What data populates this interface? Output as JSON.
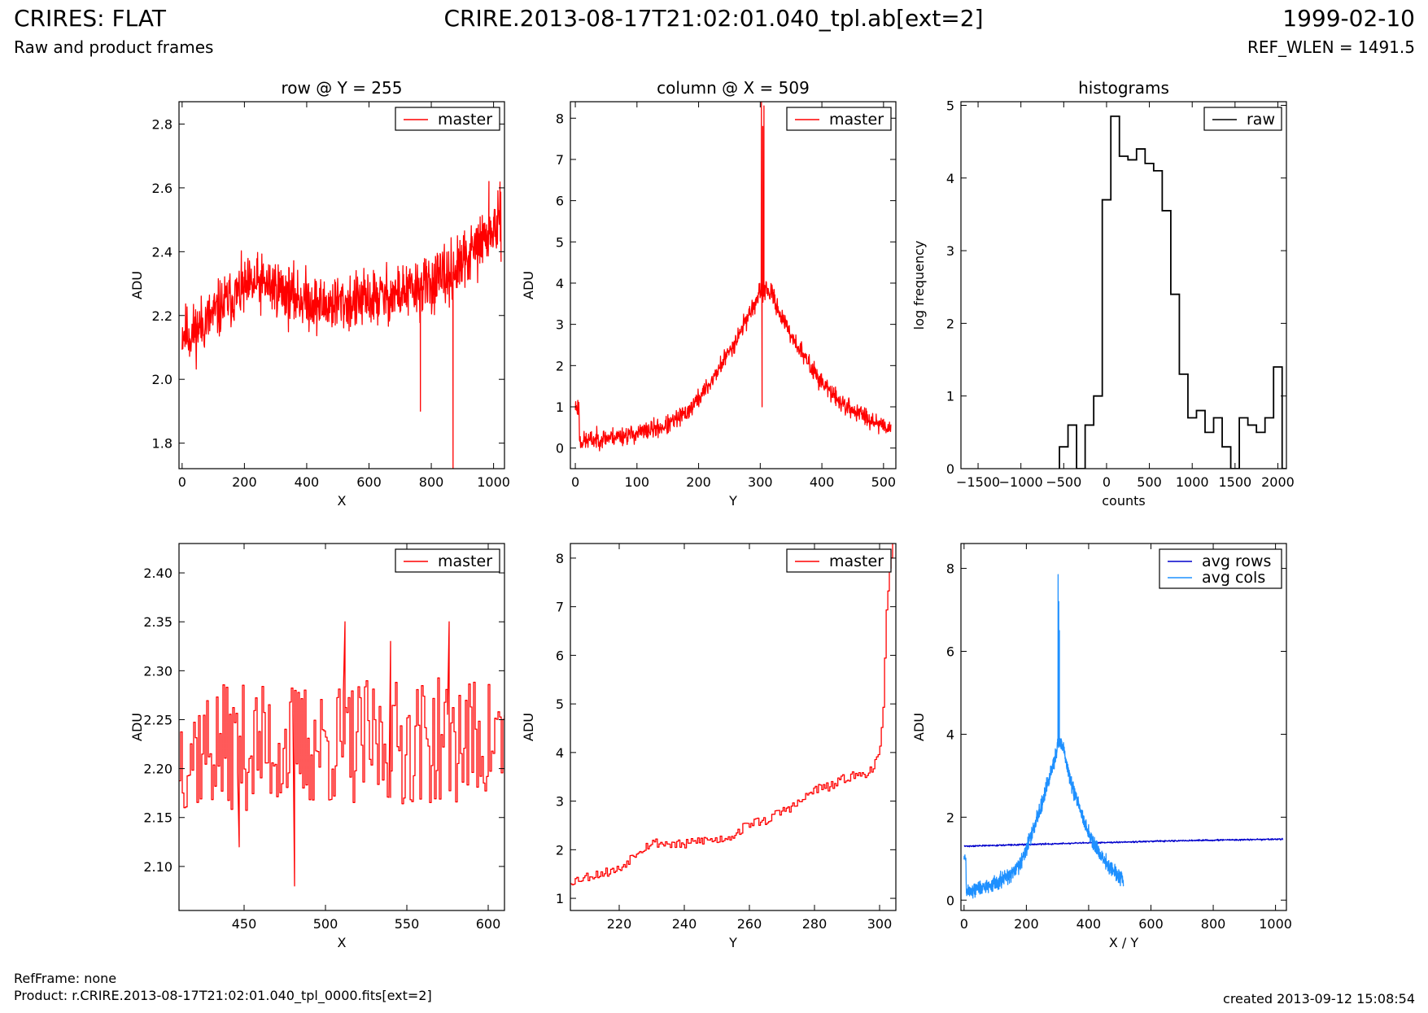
{
  "header": {
    "title": "CRIRES: FLAT",
    "subtitle": "Raw and product frames",
    "filename": "CRIRE.2013-08-17T21:02:01.040_tpl.ab[ext=2]",
    "date": "1999-02-10",
    "ref_wlen": "REF_WLEN = 1491.5"
  },
  "footer": {
    "ref_frame": "RefFrame: none",
    "product": "Product: r.CRIRE.2013-08-17T21:02:01.040_tpl_0000.fits[ext=2]",
    "created": "created 2013-09-12 15:08:54"
  },
  "colors": {
    "master": "#ff0000",
    "raw": "#000000",
    "avg_rows": "#0000cc",
    "avg_cols": "#1e90ff"
  },
  "chart_data": [
    {
      "type": "line",
      "title": "row @ Y = 255",
      "xlabel": "X",
      "ylabel": "ADU",
      "xlim": [
        -10,
        1035
      ],
      "ylim": [
        1.72,
        2.87
      ],
      "xticks": [
        0,
        200,
        400,
        600,
        800,
        1000
      ],
      "yticks": [
        1.8,
        2.0,
        2.2,
        2.4,
        2.6,
        2.8
      ],
      "tick_decimals": 1,
      "legend": "top-right",
      "series": [
        {
          "name": "master",
          "color": "#ff0000",
          "kind": "noise",
          "seed": 11,
          "amplitude": 0.1,
          "x": [
            0,
            30,
            60,
            100,
            150,
            200,
            250,
            300,
            350,
            400,
            450,
            500,
            550,
            600,
            650,
            700,
            750,
            800,
            850,
            900,
            950,
            1000,
            1024
          ],
          "y": [
            2.15,
            2.14,
            2.17,
            2.2,
            2.25,
            2.28,
            2.3,
            2.29,
            2.26,
            2.25,
            2.23,
            2.24,
            2.24,
            2.25,
            2.26,
            2.27,
            2.28,
            2.3,
            2.32,
            2.36,
            2.42,
            2.47,
            2.49
          ],
          "spikes": [
            [
              870,
              1.72
            ],
            [
              765,
              1.9
            ],
            [
              985,
              2.62
            ]
          ]
        }
      ]
    },
    {
      "type": "line",
      "title": "column @ X = 509",
      "xlabel": "Y",
      "ylabel": "ADU",
      "xlim": [
        -8,
        520
      ],
      "ylim": [
        -0.5,
        8.4
      ],
      "xticks": [
        0,
        100,
        200,
        300,
        400,
        500
      ],
      "yticks": [
        0,
        1,
        2,
        3,
        4,
        5,
        6,
        7,
        8
      ],
      "tick_decimals": 0,
      "legend": "top-right",
      "series": [
        {
          "name": "master",
          "color": "#ff0000",
          "kind": "noise",
          "seed": 23,
          "amplitude": 0.25,
          "x": [
            0,
            6,
            7,
            20,
            50,
            100,
            150,
            180,
            200,
            220,
            240,
            260,
            280,
            295,
            300,
            310,
            320,
            340,
            360,
            380,
            400,
            420,
            440,
            460,
            480,
            500,
            512
          ],
          "y": [
            1.0,
            1.0,
            0.15,
            0.18,
            0.25,
            0.35,
            0.55,
            0.85,
            1.2,
            1.6,
            2.1,
            2.6,
            3.2,
            3.6,
            3.75,
            3.85,
            3.7,
            3.0,
            2.5,
            2.0,
            1.6,
            1.25,
            1.0,
            0.85,
            0.7,
            0.55,
            0.5
          ],
          "spikes": [
            [
              302,
              8.4
            ],
            [
              304,
              7.8
            ],
            [
              306,
              8.3
            ],
            [
              303,
              1.0
            ]
          ]
        }
      ]
    },
    {
      "type": "step",
      "title": "histograms",
      "xlabel": "counts",
      "ylabel": "log frequency",
      "xlim": [
        -1700,
        2100
      ],
      "ylim": [
        0,
        5.05
      ],
      "xticks": [
        -1500,
        -1000,
        -500,
        0,
        500,
        1000,
        1500,
        2000
      ],
      "yticks": [
        0,
        1,
        2,
        3,
        4,
        5
      ],
      "tick_decimals": 0,
      "legend": "top-right",
      "series": [
        {
          "name": "raw",
          "color": "#000000",
          "edges": [
            -550,
            -450,
            -350,
            -250,
            -150,
            -50,
            50,
            150,
            250,
            350,
            450,
            550,
            650,
            750,
            850,
            950,
            1050,
            1150,
            1250,
            1350,
            1450,
            1550,
            1650,
            1750,
            1850,
            1950,
            2050,
            2150
          ],
          "values": [
            0.3,
            0.6,
            0,
            0.6,
            1.0,
            3.7,
            4.85,
            4.3,
            4.25,
            4.4,
            4.2,
            4.1,
            3.55,
            2.4,
            1.3,
            0.7,
            0.8,
            0.5,
            0.7,
            0.3,
            0,
            0.7,
            0.6,
            0.5,
            0.7,
            1.4,
            0
          ]
        }
      ]
    },
    {
      "type": "line",
      "title": "",
      "xlabel": "X",
      "ylabel": "ADU",
      "xlim": [
        410,
        610
      ],
      "ylim": [
        2.055,
        2.43
      ],
      "xticks": [
        450,
        500,
        550,
        600
      ],
      "yticks": [
        2.1,
        2.15,
        2.2,
        2.25,
        2.3,
        2.35,
        2.4
      ],
      "tick_decimals": 2,
      "legend": "top-right",
      "series": [
        {
          "name": "master",
          "color": "#ff0000",
          "kind": "steps",
          "seed": 37,
          "x": [
            410,
            610
          ],
          "y": [
            2.22,
            2.23
          ],
          "amplitude": 0.065,
          "spikes": [
            [
              481,
              2.08
            ],
            [
              512,
              2.35
            ],
            [
              576,
              2.35
            ],
            [
              540,
              2.33
            ],
            [
              447,
              2.12
            ]
          ]
        }
      ]
    },
    {
      "type": "line",
      "title": "",
      "xlabel": "Y",
      "ylabel": "ADU",
      "xlim": [
        205,
        305
      ],
      "ylim": [
        0.75,
        8.3
      ],
      "xticks": [
        220,
        240,
        260,
        280,
        300
      ],
      "yticks": [
        1,
        2,
        3,
        4,
        5,
        6,
        7,
        8
      ],
      "tick_decimals": 0,
      "legend": "top-right",
      "series": [
        {
          "name": "master",
          "color": "#ff0000",
          "kind": "steps",
          "seed": 53,
          "amplitude": 0.1,
          "x": [
            205,
            210,
            220,
            225,
            230,
            240,
            245,
            250,
            255,
            260,
            265,
            270,
            275,
            280,
            285,
            290,
            295,
            298,
            300,
            301,
            302,
            303,
            304
          ],
          "y": [
            1.35,
            1.45,
            1.6,
            1.95,
            2.15,
            2.1,
            2.2,
            2.2,
            2.3,
            2.55,
            2.6,
            2.8,
            2.95,
            3.25,
            3.3,
            3.5,
            3.55,
            3.7,
            4.0,
            4.8,
            7.0,
            7.8,
            8.3
          ]
        }
      ]
    },
    {
      "type": "line",
      "title": "",
      "xlabel": "X / Y",
      "ylabel": "ADU",
      "xlim": [
        -10,
        1035
      ],
      "ylim": [
        -0.25,
        8.6
      ],
      "xticks": [
        0,
        200,
        400,
        600,
        800,
        1000
      ],
      "yticks": [
        0,
        2,
        4,
        6,
        8
      ],
      "tick_decimals": 0,
      "legend": "top-right",
      "series": [
        {
          "name": "avg rows",
          "color": "#0000cc",
          "kind": "noise",
          "seed": 71,
          "amplitude": 0.02,
          "x": [
            0,
            250,
            500,
            750,
            1024
          ],
          "y": [
            1.3,
            1.35,
            1.4,
            1.44,
            1.47
          ]
        },
        {
          "name": "avg cols",
          "color": "#1e90ff",
          "kind": "noise",
          "seed": 89,
          "amplitude": 0.2,
          "x": [
            0,
            6,
            7,
            20,
            50,
            100,
            150,
            180,
            200,
            220,
            240,
            260,
            280,
            295,
            300,
            310,
            320,
            340,
            360,
            380,
            400,
            420,
            440,
            460,
            480,
            500,
            512
          ],
          "y": [
            1.0,
            1.0,
            0.2,
            0.22,
            0.3,
            0.4,
            0.6,
            0.9,
            1.25,
            1.65,
            2.1,
            2.6,
            3.1,
            3.5,
            3.7,
            3.8,
            3.6,
            2.9,
            2.5,
            2.0,
            1.6,
            1.3,
            1.05,
            0.85,
            0.7,
            0.55,
            0.5
          ],
          "spikes": [
            [
              302,
              7.85
            ],
            [
              304,
              7.2
            ],
            [
              306,
              6.5
            ]
          ]
        }
      ]
    }
  ]
}
